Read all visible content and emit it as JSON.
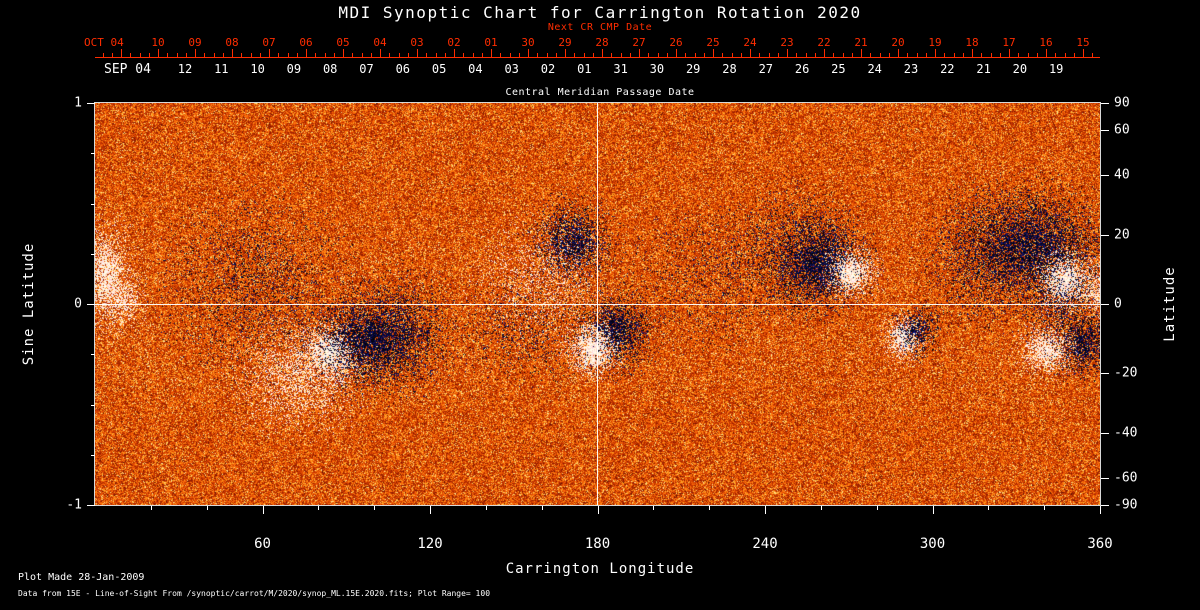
{
  "title": "MDI Synoptic Chart for Carrington Rotation 2020",
  "colors": {
    "background": "#000000",
    "foreground": "#ffffff",
    "date_axis_red": "#ff2d00",
    "negative_polarity": "#101060",
    "positive_polarity": "#fffbe0"
  },
  "top_axes": {
    "next_cr_cmp_label": "Next CR CMP Date",
    "oct_month_label": "OCT 04",
    "oct_day_labels": [
      "10",
      "09",
      "08",
      "07",
      "06",
      "05",
      "04",
      "03",
      "02",
      "01",
      "30",
      "29",
      "28",
      "27",
      "26",
      "25",
      "24",
      "23",
      "22",
      "21",
      "20",
      "19",
      "18",
      "17",
      "16",
      "15"
    ],
    "sep_month_label": "SEP 04",
    "sep_day_labels": [
      "12",
      "11",
      "10",
      "09",
      "08",
      "07",
      "06",
      "05",
      "04",
      "03",
      "02",
      "01",
      "31",
      "30",
      "29",
      "28",
      "27",
      "26",
      "25",
      "24",
      "23",
      "22",
      "21",
      "20",
      "19"
    ],
    "cmp_axis_label": "Central Meridian Passage Date"
  },
  "chart_data": {
    "type": "heatmap",
    "title": "MDI Synoptic Chart for Carrington Rotation 2020",
    "xlabel": "Carrington Longitude",
    "ylabel_left": "Sine Latitude",
    "ylabel_right": "Latitude",
    "xlim": [
      0,
      360
    ],
    "ylim_sine_latitude": [
      -1,
      1
    ],
    "x_major_ticks": [
      60,
      120,
      180,
      240,
      300,
      360
    ],
    "x_minor_tick_step": 20,
    "sine_latitude_ticks": [
      1,
      0,
      -1
    ],
    "sine_latitude_minor_ticks": [
      0.75,
      0.5,
      0.25,
      -0.25,
      -0.5,
      -0.75
    ],
    "latitude_ticks": [
      90,
      60,
      40,
      20,
      0,
      -20,
      -40,
      -60,
      -90
    ],
    "grid_lines": {
      "longitude": 180,
      "sine_latitude": 0
    },
    "plot_range_gauss": 100,
    "colormap_description": "orange-red magnetogram noise; negative polarity dark blue/black, positive polarity white/yellow",
    "active_regions": [
      {
        "x": 0.01,
        "y": 0.428,
        "rx": 0.018,
        "ry": 0.09,
        "polarity": "positive",
        "strength": 0.8
      },
      {
        "x": 0.03,
        "y": 0.49,
        "rx": 0.015,
        "ry": 0.05,
        "polarity": "positive",
        "strength": 0.5
      },
      {
        "x": 0.159,
        "y": 0.452,
        "rx": 0.07,
        "ry": 0.16,
        "polarity": "negative",
        "strength": 0.18
      },
      {
        "x": 0.234,
        "y": 0.619,
        "rx": 0.02,
        "ry": 0.05,
        "polarity": "positive",
        "strength": 0.97
      },
      {
        "x": 0.272,
        "y": 0.59,
        "rx": 0.04,
        "ry": 0.085,
        "polarity": "negative",
        "strength": 0.8
      },
      {
        "x": 0.204,
        "y": 0.684,
        "rx": 0.045,
        "ry": 0.095,
        "polarity": "positive",
        "strength": 0.4
      },
      {
        "x": 0.308,
        "y": 0.565,
        "rx": 0.035,
        "ry": 0.1,
        "polarity": "negative",
        "strength": 0.35
      },
      {
        "x": 0.475,
        "y": 0.346,
        "rx": 0.028,
        "ry": 0.07,
        "polarity": "negative",
        "strength": 0.75
      },
      {
        "x": 0.443,
        "y": 0.44,
        "rx": 0.05,
        "ry": 0.12,
        "polarity": "positive",
        "strength": 0.2
      },
      {
        "x": 0.516,
        "y": 0.57,
        "rx": 0.026,
        "ry": 0.065,
        "polarity": "negative",
        "strength": 0.8
      },
      {
        "x": 0.495,
        "y": 0.612,
        "rx": 0.018,
        "ry": 0.05,
        "polarity": "positive",
        "strength": 0.95
      },
      {
        "x": 0.721,
        "y": 0.398,
        "rx": 0.032,
        "ry": 0.08,
        "polarity": "negative",
        "strength": 0.85
      },
      {
        "x": 0.752,
        "y": 0.423,
        "rx": 0.018,
        "ry": 0.045,
        "polarity": "positive",
        "strength": 0.95
      },
      {
        "x": 0.69,
        "y": 0.366,
        "rx": 0.055,
        "ry": 0.12,
        "polarity": "negative",
        "strength": 0.2
      },
      {
        "x": 0.804,
        "y": 0.585,
        "rx": 0.014,
        "ry": 0.04,
        "polarity": "positive",
        "strength": 0.95
      },
      {
        "x": 0.818,
        "y": 0.562,
        "rx": 0.016,
        "ry": 0.045,
        "polarity": "negative",
        "strength": 0.6
      },
      {
        "x": 0.935,
        "y": 0.358,
        "rx": 0.05,
        "ry": 0.1,
        "polarity": "negative",
        "strength": 0.75
      },
      {
        "x": 0.885,
        "y": 0.378,
        "rx": 0.045,
        "ry": 0.12,
        "polarity": "negative",
        "strength": 0.28
      },
      {
        "x": 0.966,
        "y": 0.443,
        "rx": 0.02,
        "ry": 0.055,
        "polarity": "positive",
        "strength": 0.97
      },
      {
        "x": 0.984,
        "y": 0.599,
        "rx": 0.022,
        "ry": 0.055,
        "polarity": "negative",
        "strength": 0.75
      },
      {
        "x": 0.946,
        "y": 0.614,
        "rx": 0.018,
        "ry": 0.045,
        "polarity": "positive",
        "strength": 0.9
      },
      {
        "x": 0.998,
        "y": 0.465,
        "rx": 0.01,
        "ry": 0.05,
        "polarity": "positive",
        "strength": 0.6
      },
      {
        "x": 0.423,
        "y": 0.565,
        "rx": 0.05,
        "ry": 0.1,
        "polarity": "negative",
        "strength": 0.15
      },
      {
        "x": 0.602,
        "y": 0.44,
        "rx": 0.06,
        "ry": 0.14,
        "polarity": "negative",
        "strength": 0.1
      },
      {
        "x": 0.96,
        "y": 0.5,
        "rx": 0.028,
        "ry": 0.08,
        "polarity": "negative",
        "strength": 0.3
      }
    ]
  },
  "footer": {
    "line1": "Plot Made 28-Jan-2009",
    "line2": "Data from 15E - Line-of-Sight From /synoptic/carrot/M/2020/synop_ML.15E.2020.fits; Plot Range=  100"
  }
}
